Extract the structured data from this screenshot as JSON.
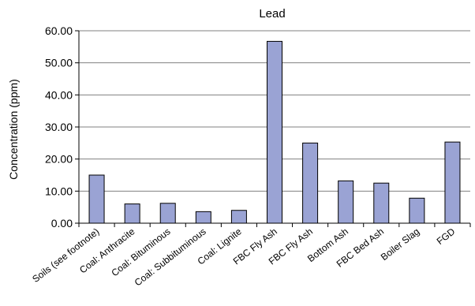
{
  "chart_data": {
    "type": "bar",
    "title": "Lead",
    "xlabel": "",
    "ylabel": "Concentration (ppm)",
    "ylim": [
      0,
      60
    ],
    "yticks": [
      "0.00",
      "10.00",
      "20.00",
      "30.00",
      "40.00",
      "50.00",
      "60.00"
    ],
    "grid": true,
    "legend": "none",
    "categories": [
      "Soils (see footnote)",
      "Coal: Anthracite",
      "Coal: Bituminous",
      "Coal: Subbituminous",
      "Coal: Lignite",
      "FBC Fly Ash",
      "FBC Fly Ash",
      "Bottom Ash",
      "FBC Bed Ash",
      "Boiler Slag",
      "FGD"
    ],
    "values": [
      15.0,
      6.0,
      6.2,
      3.6,
      4.0,
      56.7,
      25.0,
      13.2,
      12.5,
      7.8,
      25.3
    ],
    "colors": {
      "bar_fill": "#9aa3d4",
      "bar_stroke": "#000000",
      "grid": "#808080"
    }
  }
}
